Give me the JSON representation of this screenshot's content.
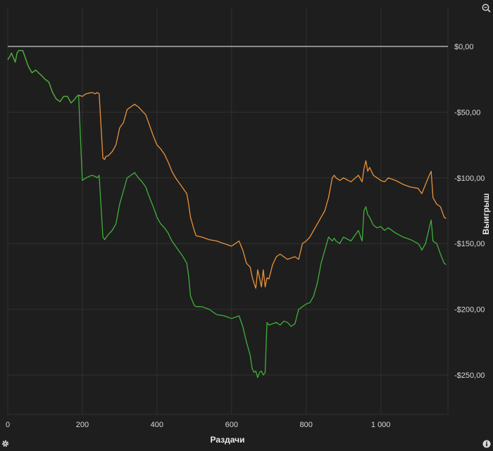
{
  "chart_data": {
    "type": "line",
    "xlabel": "Раздачи",
    "ylabel": "Выигрыш",
    "xlim": [
      0,
      1180
    ],
    "ylim": [
      -280,
      30
    ],
    "x_ticks": [
      0,
      200,
      400,
      600,
      800,
      1000
    ],
    "x_tick_labels": [
      "0",
      "200",
      "400",
      "600",
      "800",
      "1 000"
    ],
    "y_ticks": [
      0,
      -50,
      -100,
      -150,
      -200,
      -250
    ],
    "y_tick_labels": [
      "$0,00",
      "-$50,00",
      "-$100,00",
      "-$150,00",
      "-$200,00",
      "-$250,00"
    ],
    "grid": true,
    "series": [
      {
        "color": "#b0b0b0",
        "x": [
          0,
          1180
        ],
        "y": [
          0,
          0
        ]
      },
      {
        "color": "#e8923a",
        "x": [
          0,
          5,
          10,
          20,
          25,
          30,
          40,
          55,
          65,
          75,
          90,
          100,
          110,
          120,
          130,
          140,
          150,
          160,
          170,
          180,
          185,
          190,
          200,
          210,
          225,
          235,
          240,
          245,
          255,
          260,
          262,
          270,
          280,
          290,
          300,
          310,
          320,
          330,
          340,
          350,
          360,
          370,
          380,
          390,
          400,
          410,
          420,
          430,
          440,
          450,
          460,
          470,
          480,
          485,
          490,
          500,
          505,
          520,
          540,
          560,
          580,
          600,
          610,
          620,
          630,
          640,
          650,
          655,
          660,
          665,
          670,
          675,
          680,
          685,
          690,
          695,
          700,
          710,
          720,
          730,
          740,
          750,
          760,
          770,
          780,
          790,
          800,
          810,
          820,
          830,
          840,
          850,
          860,
          870,
          875,
          880,
          890,
          900,
          920,
          940,
          950,
          955,
          960,
          965,
          970,
          980,
          990,
          1000,
          1010,
          1020,
          1040,
          1060,
          1080,
          1100,
          1105,
          1110,
          1120,
          1130,
          1135,
          1140,
          1150,
          1160,
          1170,
          1175
        ],
        "y": [
          -10,
          -8,
          -5,
          -12,
          -5,
          -3,
          -3,
          -15,
          -20,
          -18,
          -22,
          -25,
          -27,
          -35,
          -40,
          -42,
          -38,
          -38,
          -43,
          -40,
          -38,
          -37,
          -38,
          -36,
          -35,
          -36,
          -35,
          -36,
          -85,
          -86,
          -84,
          -83,
          -80,
          -75,
          -62,
          -58,
          -48,
          -46,
          -44,
          -46,
          -49,
          -52,
          -60,
          -68,
          -75,
          -78,
          -82,
          -88,
          -95,
          -100,
          -104,
          -108,
          -112,
          -120,
          -130,
          -140,
          -144,
          -145,
          -147,
          -148,
          -150,
          -152,
          -150,
          -148,
          -155,
          -165,
          -168,
          -175,
          -180,
          -184,
          -170,
          -176,
          -183,
          -170,
          -183,
          -176,
          -177,
          -166,
          -160,
          -158,
          -160,
          -162,
          -161,
          -160,
          -162,
          -150,
          -148,
          -145,
          -140,
          -135,
          -130,
          -125,
          -115,
          -100,
          -98,
          -100,
          -102,
          -100,
          -103,
          -98,
          -103,
          -93,
          -87,
          -95,
          -92,
          -98,
          -100,
          -102,
          -103,
          -100,
          -102,
          -105,
          -107,
          -108,
          -110,
          -112,
          -105,
          -98,
          -95,
          -115,
          -120,
          -122,
          -130,
          -131
        ]
      },
      {
        "color": "#3fb03a",
        "x": [
          0,
          5,
          10,
          20,
          25,
          30,
          40,
          55,
          65,
          75,
          90,
          100,
          110,
          120,
          130,
          140,
          150,
          160,
          170,
          180,
          185,
          190,
          200,
          210,
          225,
          235,
          240,
          245,
          255,
          260,
          262,
          270,
          280,
          290,
          300,
          310,
          320,
          330,
          340,
          350,
          360,
          370,
          380,
          390,
          400,
          410,
          420,
          430,
          440,
          450,
          460,
          470,
          480,
          485,
          490,
          500,
          505,
          520,
          540,
          560,
          580,
          600,
          610,
          620,
          630,
          640,
          650,
          655,
          660,
          665,
          670,
          675,
          680,
          685,
          690,
          695,
          700,
          710,
          720,
          730,
          740,
          750,
          760,
          770,
          780,
          790,
          800,
          810,
          820,
          830,
          840,
          850,
          860,
          870,
          875,
          880,
          890,
          900,
          920,
          940,
          950,
          955,
          960,
          965,
          970,
          980,
          990,
          1000,
          1010,
          1020,
          1040,
          1060,
          1080,
          1100,
          1105,
          1110,
          1120,
          1130,
          1135,
          1140,
          1150,
          1160,
          1170,
          1175
        ],
        "y": [
          -10,
          -8,
          -5,
          -12,
          -5,
          -3,
          -3,
          -15,
          -20,
          -18,
          -22,
          -25,
          -27,
          -35,
          -40,
          -42,
          -38,
          -38,
          -43,
          -40,
          -38,
          -37,
          -102,
          -100,
          -98,
          -99,
          -100,
          -98,
          -145,
          -147,
          -146,
          -143,
          -140,
          -135,
          -120,
          -110,
          -100,
          -98,
          -96,
          -100,
          -103,
          -107,
          -115,
          -122,
          -130,
          -135,
          -138,
          -142,
          -148,
          -152,
          -156,
          -160,
          -165,
          -175,
          -190,
          -197,
          -198,
          -198,
          -200,
          -204,
          -205,
          -207,
          -206,
          -205,
          -213,
          -225,
          -235,
          -245,
          -248,
          -247,
          -252,
          -248,
          -247,
          -250,
          -248,
          -210,
          -212,
          -211,
          -210,
          -212,
          -209,
          -210,
          -213,
          -211,
          -200,
          -198,
          -196,
          -195,
          -190,
          -180,
          -165,
          -155,
          -145,
          -148,
          -146,
          -148,
          -150,
          -145,
          -148,
          -140,
          -148,
          -125,
          -122,
          -128,
          -130,
          -136,
          -138,
          -137,
          -140,
          -138,
          -142,
          -145,
          -147,
          -150,
          -152,
          -155,
          -150,
          -138,
          -132,
          -148,
          -150,
          -158,
          -165,
          -166
        ]
      }
    ]
  }
}
